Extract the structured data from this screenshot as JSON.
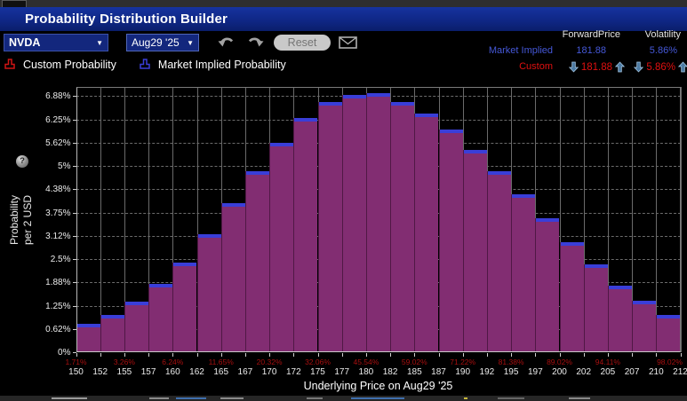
{
  "window": {
    "title": "Probability Distribution Builder"
  },
  "toolbar": {
    "ticker": "NVDA",
    "expiry": "Aug29 '25",
    "reset_label": "Reset",
    "icons": [
      "undo-arrow",
      "redo-arrow",
      "envelope"
    ]
  },
  "legend": [
    {
      "label": "Custom Probability",
      "color": "#d01414"
    },
    {
      "label": "Market Implied Probability",
      "color": "#3a3ed8"
    }
  ],
  "info_panel": {
    "columns": {
      "forward_price": "ForwardPrice",
      "volatility": "Volatility"
    },
    "market_implied": {
      "label": "Market Implied",
      "forward_price": "181.88",
      "volatility": "5.86%",
      "color": "#4558d8"
    },
    "custom": {
      "label": "Custom",
      "forward_price": "181.88",
      "volatility": "5.86%",
      "color": "#e01010",
      "adjusters": [
        "down-arrow",
        "up-arrow"
      ]
    }
  },
  "chart_data": {
    "type": "bar",
    "title": "",
    "xlabel": "Underlying Price on Aug29 '25",
    "ylabel": "Probability per 2 USD",
    "ylabel_lines": [
      "Probability",
      "per 2 USD"
    ],
    "x_tick_labels": [
      "150",
      "152",
      "155",
      "157",
      "160",
      "162",
      "165",
      "167",
      "170",
      "172",
      "175",
      "177",
      "180",
      "182",
      "185",
      "187",
      "190",
      "192",
      "195",
      "197",
      "200",
      "202",
      "205",
      "207",
      "210",
      "212"
    ],
    "bin_edges_usd": [
      150,
      152.5,
      155,
      157.5,
      160,
      162.5,
      165,
      167.5,
      170,
      172.5,
      175,
      177.5,
      180,
      182.5,
      185,
      187.5,
      190,
      192.5,
      195,
      197.5,
      200,
      202.5,
      205,
      207.5,
      210,
      212.5
    ],
    "y_tick_labels": [
      "0%",
      "0.62%",
      "1.25%",
      "1.88%",
      "2.5%",
      "3.12%",
      "3.75%",
      "4.38%",
      "5%",
      "5.62%",
      "6.25%",
      "6.88%"
    ],
    "y_tick_step_pct": 0.625,
    "ylim": [
      0,
      7.12
    ],
    "grid": {
      "horizontal": "dashed",
      "vertical": "solid"
    },
    "series": [
      {
        "name": "Custom Probability",
        "color": "#822d72",
        "values": [
          0.67,
          0.9,
          1.26,
          1.73,
          2.32,
          3.07,
          3.91,
          4.76,
          5.53,
          6.18,
          6.62,
          6.82,
          6.85,
          6.62,
          6.3,
          5.87,
          5.33,
          4.76,
          4.14,
          3.5,
          2.85,
          2.25,
          1.7,
          1.28,
          0.9
        ]
      },
      {
        "name": "Market Implied Probability",
        "color": "#3a3ed8",
        "values": [
          0.77,
          1.0,
          1.36,
          1.83,
          2.42,
          3.17,
          4.01,
          4.86,
          5.63,
          6.28,
          6.72,
          6.92,
          6.95,
          6.72,
          6.4,
          5.97,
          5.43,
          4.86,
          4.24,
          3.6,
          2.95,
          2.35,
          1.8,
          1.38,
          1.0
        ]
      }
    ],
    "cumulative_labels": [
      {
        "tick_index": 0,
        "text": "1.71%"
      },
      {
        "tick_index": 2,
        "text": "3.26%"
      },
      {
        "tick_index": 4,
        "text": "6.24%"
      },
      {
        "tick_index": 6,
        "text": "11.65%"
      },
      {
        "tick_index": 8,
        "text": "20.32%"
      },
      {
        "tick_index": 10,
        "text": "32.06%"
      },
      {
        "tick_index": 12,
        "text": "45.54%"
      },
      {
        "tick_index": 14,
        "text": "59.02%"
      },
      {
        "tick_index": 16,
        "text": "71.22%"
      },
      {
        "tick_index": 18,
        "text": "81.38%"
      },
      {
        "tick_index": 20,
        "text": "89.02%"
      },
      {
        "tick_index": 22,
        "text": "94.11%"
      },
      {
        "tick_index": 25,
        "text": "98.02%"
      }
    ],
    "help_icon_text": "?"
  }
}
